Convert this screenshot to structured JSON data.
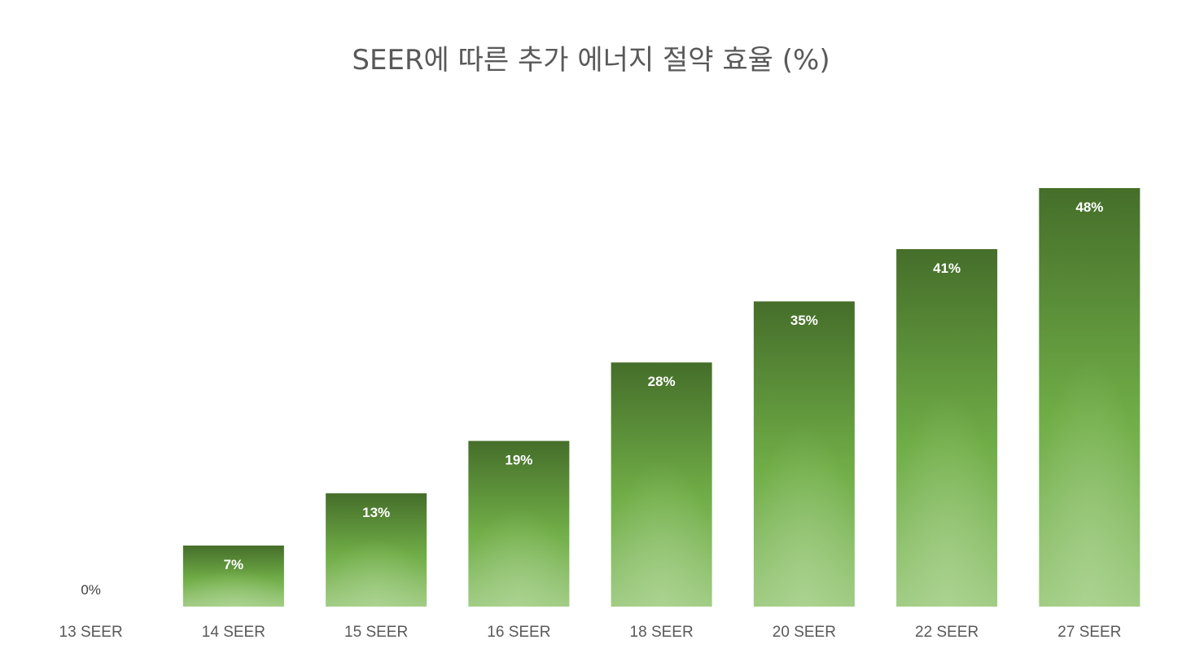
{
  "chart_data": {
    "type": "bar",
    "title": "SEER에 따른 추가 에너지 절약 효율 (%)",
    "categories": [
      "13 SEER",
      "14 SEER",
      "15 SEER",
      "16 SEER",
      "18 SEER",
      "20 SEER",
      "22 SEER",
      "27 SEER"
    ],
    "values": [
      0,
      7,
      13,
      19,
      28,
      35,
      41,
      48
    ],
    "data_labels": [
      "0%",
      "7%",
      "13%",
      "19%",
      "28%",
      "35%",
      "41%",
      "48%"
    ],
    "xlabel": "",
    "ylabel": "",
    "ylim": [
      0,
      48
    ],
    "grid": false,
    "legend": "none",
    "colors": {
      "bar_top": "#456e2a",
      "bar_mid": "#70ad47",
      "bar_bottom": "#a0cc82",
      "label_text": "#ffffff",
      "tick_text": "#595959",
      "title_text": "#595959"
    }
  }
}
